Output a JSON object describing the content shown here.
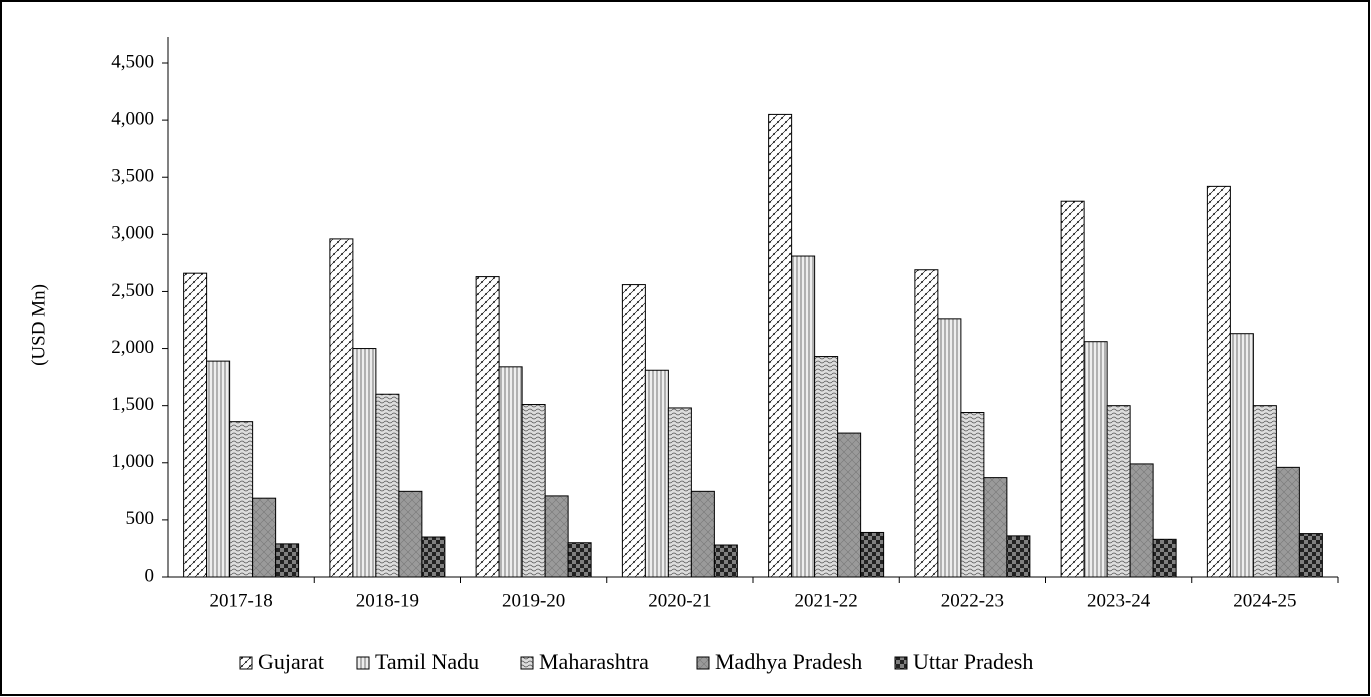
{
  "chart_data": {
    "type": "bar",
    "y_label": "(USD Mn)",
    "categories": [
      "2017-18",
      "2018-19",
      "2019-20",
      "2020-21",
      "2021-22",
      "2022-23",
      "2023-24",
      "2024-25"
    ],
    "series": [
      {
        "name": "Gujarat",
        "color": "#ffffff",
        "values": [
          2660,
          2960,
          2630,
          2560,
          4050,
          2690,
          3290,
          3420
        ]
      },
      {
        "name": "Tamil Nadu",
        "color": "#eeeeee",
        "values": [
          1890,
          2000,
          1840,
          1810,
          2810,
          2260,
          2060,
          2130
        ]
      },
      {
        "name": "Maharashtra",
        "color": "#dddddd",
        "values": [
          1360,
          1600,
          1510,
          1480,
          1930,
          1440,
          1500,
          1500
        ]
      },
      {
        "name": "Madhya Pradesh",
        "color": "#9a9a9a",
        "values": [
          690,
          750,
          710,
          750,
          1260,
          870,
          990,
          960
        ]
      },
      {
        "name": "Uttar Pradesh",
        "color": "#808080",
        "values": [
          290,
          350,
          300,
          280,
          390,
          360,
          330,
          380
        ]
      }
    ],
    "ylim": [
      0,
      4500
    ],
    "yticks": [
      0,
      500,
      {
        "value": 1000,
        "label": "1,000"
      },
      {
        "value": 1500,
        "label": "1,500"
      },
      {
        "value": 2000,
        "label": "2,000"
      },
      {
        "value": 2500,
        "label": "2,500"
      },
      {
        "value": 3000,
        "label": "3,000"
      },
      {
        "value": 3500,
        "label": "3,500"
      },
      {
        "value": 4000,
        "label": "4,000"
      },
      {
        "value": 4500,
        "label": "4,500"
      }
    ],
    "legend": "bottom"
  }
}
